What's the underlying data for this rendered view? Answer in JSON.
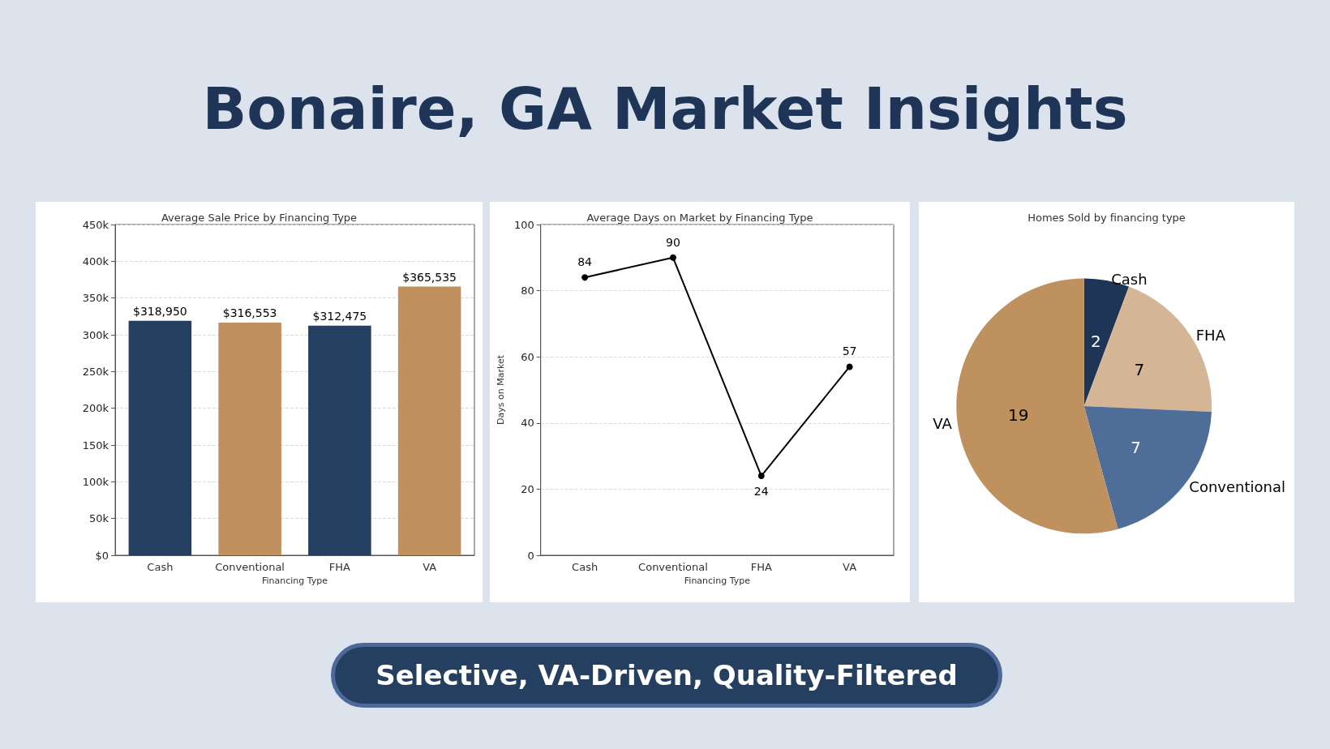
{
  "chart_data": [
    {
      "type": "bar",
      "title": "Average Sale Price by Financing Type",
      "xlabel": "Financing Type",
      "annotations": [
        "Bonaire, GA Market Insights",
        "Selective, VA-Driven, Quality-Filtered"
      ],
      "categories": [
        "Cash",
        "Conventional",
        "FHA",
        "VA"
      ],
      "values": [
        318950,
        316553,
        312475,
        365535
      ],
      "colors": [
        "#243f5f",
        "#c0915e",
        "#243f5f",
        "#c0915e"
      ],
      "value_labels": [
        "$318,950",
        "$316,553",
        "$312,475",
        "$365,535"
      ],
      "ylim": [
        0,
        450000
      ],
      "yticks": [
        {
          "value": 0,
          "label": "$0"
        },
        {
          "value": 50000,
          "label": "50k"
        },
        {
          "value": 100000,
          "label": "100k"
        },
        {
          "value": 150000,
          "label": "150k"
        },
        {
          "value": 200000,
          "label": "200k"
        },
        {
          "value": 250000,
          "label": "250k"
        },
        {
          "value": 300000,
          "label": "300k"
        },
        {
          "value": 350000,
          "label": "350k"
        },
        {
          "value": 400000,
          "label": "400k"
        },
        {
          "value": 450000,
          "label": "450k"
        }
      ],
      "grid": "y",
      "legend": false
    },
    {
      "type": "line",
      "title": "Average Days on Market by Financing Type",
      "xlabel": "Financing Type",
      "ylabel": "Days on Market",
      "categories": [
        "Cash",
        "Conventional",
        "FHA",
        "VA"
      ],
      "series": [
        {
          "color": "#000000",
          "values": [
            84,
            90,
            24,
            57
          ]
        }
      ],
      "ylim": [
        0,
        100
      ],
      "yticks": [
        0,
        20,
        40,
        60,
        80,
        100
      ],
      "grid": "y",
      "marker": "circle",
      "line_style": "solid",
      "data_labels": true,
      "legend": false
    },
    {
      "type": "pie",
      "title": "Homes Sold by financing type",
      "categories": [
        "Cash",
        "FHA",
        "Conventional",
        "VA"
      ],
      "values": [
        2,
        7,
        7,
        19
      ],
      "colors": [
        "#1f3557",
        "#d4b596",
        "#4f6d99",
        "#bf915f"
      ],
      "data_labels": true,
      "legend": false
    }
  ]
}
